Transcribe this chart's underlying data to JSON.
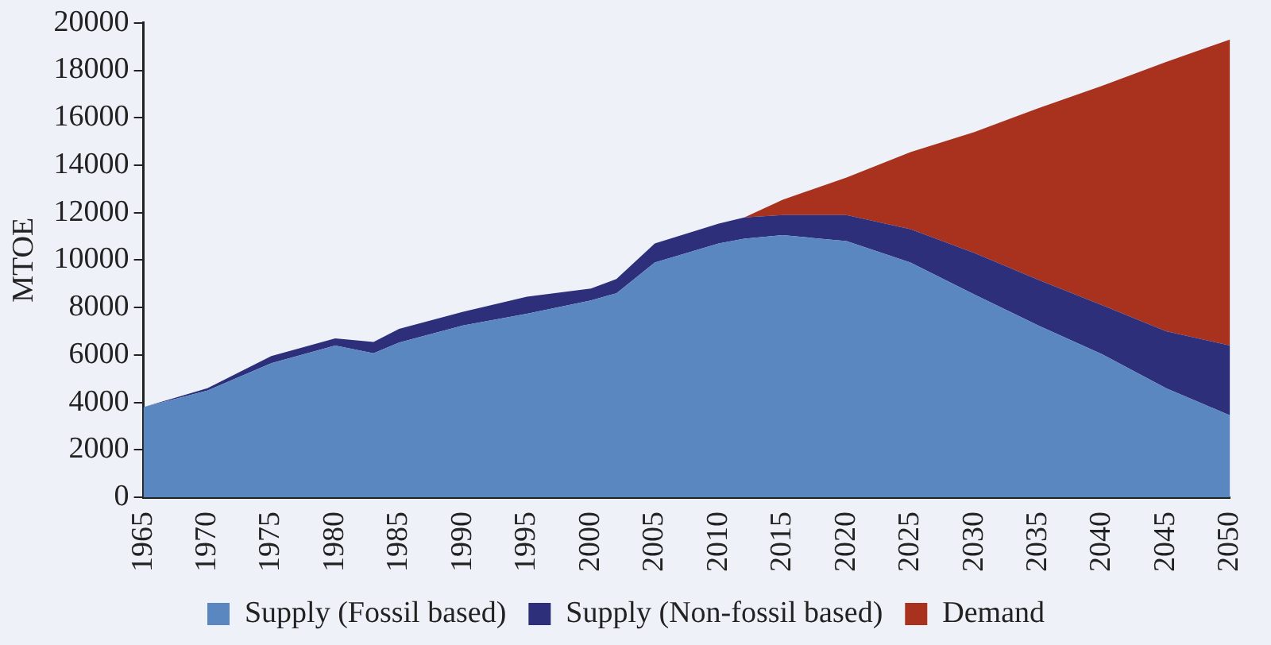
{
  "chart_data": {
    "type": "area",
    "ylabel": "MTOE",
    "stacked": true,
    "legend": "bottom",
    "grid": false,
    "x": [
      1965,
      1970,
      1975,
      1980,
      1983,
      1985,
      1990,
      1995,
      2000,
      2002,
      2005,
      2010,
      2012,
      2015,
      2020,
      2025,
      2030,
      2035,
      2040,
      2045,
      2050
    ],
    "xlim": [
      1965,
      2050
    ],
    "xticks": [
      1965,
      1970,
      1975,
      1980,
      1985,
      1990,
      1995,
      2000,
      2005,
      2010,
      2015,
      2020,
      2025,
      2030,
      2035,
      2040,
      2045,
      2050
    ],
    "ylim": [
      0,
      20000
    ],
    "yticks": [
      0,
      2000,
      4000,
      6000,
      8000,
      10000,
      12000,
      14000,
      16000,
      18000,
      20000
    ],
    "series": [
      {
        "name": "Supply (Fossil based)",
        "color": "#5b87c1",
        "values": [
          3800,
          4500,
          5650,
          6400,
          6070,
          6520,
          7240,
          7740,
          8300,
          8600,
          9900,
          10700,
          10900,
          11050,
          10800,
          9900,
          8550,
          7240,
          6030,
          4600,
          3450
        ]
      },
      {
        "name": "Supply (Non-fossil based)",
        "color": "#2e2f7a",
        "values": [
          0,
          100,
          300,
          300,
          480,
          580,
          580,
          720,
          500,
          600,
          800,
          840,
          900,
          850,
          1100,
          1400,
          1750,
          1930,
          2070,
          2400,
          2950
        ]
      },
      {
        "name": "Demand",
        "color": "#a9321f",
        "values": [
          null,
          null,
          null,
          null,
          null,
          null,
          null,
          null,
          null,
          null,
          null,
          null,
          0,
          640,
          1580,
          3250,
          5100,
          7230,
          9250,
          11350,
          12900
        ]
      }
    ]
  }
}
